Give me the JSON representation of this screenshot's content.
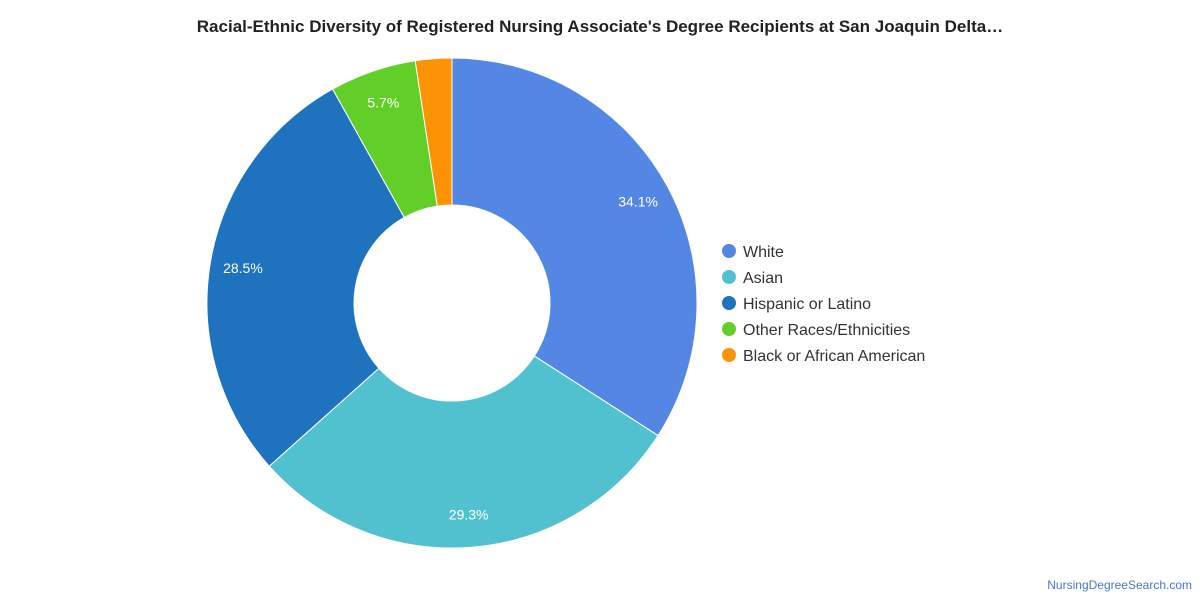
{
  "chart_data": {
    "type": "pie",
    "style": "donut",
    "title": "Racial-Ethnic Diversity of Registered Nursing Associate's Degree Recipients at San Joaquin Delta…",
    "categories": [
      "White",
      "Asian",
      "Hispanic or Latino",
      "Other Races/Ethnicities",
      "Black or African American"
    ],
    "values": [
      34.1,
      29.3,
      28.5,
      5.7,
      2.4
    ],
    "data_labels": [
      "34.1%",
      "29.3%",
      "28.5%",
      "5.7%",
      ""
    ],
    "colors": [
      "#5486e3",
      "#52c1cf",
      "#1f72bd",
      "#62cf28",
      "#fb9304"
    ],
    "legend_position": "right"
  },
  "footer": {
    "source": "NursingDegreeSearch.com"
  }
}
